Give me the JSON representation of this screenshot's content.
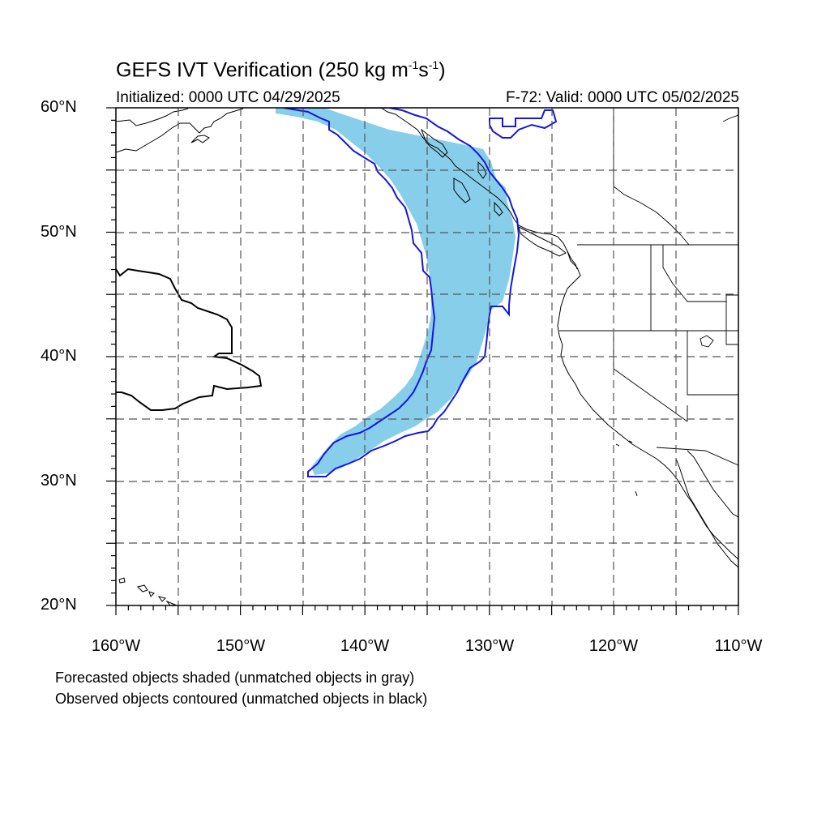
{
  "title": {
    "prefix": "GEFS IVT Verification (250 kg m",
    "exp1": "-1",
    "mid": "s",
    "exp2": "-1",
    "suffix": ")"
  },
  "subtitle": {
    "initialized": "Initialized: 0000 UTC 04/29/2025",
    "valid": "F-72: Valid: 0000 UTC 05/02/2025"
  },
  "map": {
    "region": "Northeast Pacific / US West Coast",
    "lat_range": [
      20,
      60
    ],
    "lon_range": [
      -160,
      -110
    ],
    "grid": "dashed every 5 degrees",
    "lat_labels": [
      "60°N",
      "50°N",
      "40°N",
      "30°N",
      "20°N"
    ],
    "lon_labels": [
      "160°W",
      "150°W",
      "140°W",
      "130°W",
      "120°W",
      "110°W"
    ],
    "colors": {
      "forecast_fill": "#87CEEB",
      "observed_matched": "#1515e0",
      "observed_unmatched": "#000000",
      "coastline": "#000000",
      "grid": "#555555"
    },
    "objects": [
      {
        "name": "Forecasted object (matched)",
        "style": "shaded",
        "color": "#87CEEB"
      },
      {
        "name": "Observed object (matched)",
        "style": "contour",
        "color": "#1515e0"
      },
      {
        "name": "Observed object (unmatched)",
        "style": "contour",
        "color": "#000000"
      }
    ]
  },
  "footnotes": {
    "line1": "Forecasted objects shaded (unmatched objects in gray)",
    "line2": "Observed objects contoured (unmatched objects in black)"
  }
}
